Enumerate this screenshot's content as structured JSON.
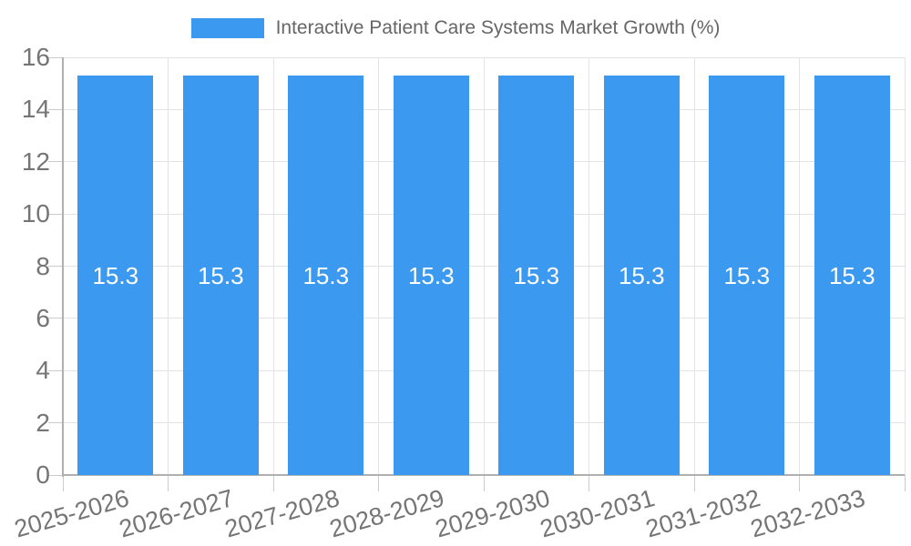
{
  "legend": {
    "label": "Interactive Patient Care Systems Market Growth (%)"
  },
  "colors": {
    "bar": "#3b99f0",
    "grid": "#e3e3e3",
    "axis": "#b0b0b0",
    "tick": "#cccccc",
    "axis_text": "#757575",
    "legend_text": "#666666",
    "value_text": "#ffffff",
    "background": "#ffffff"
  },
  "chart_data": {
    "type": "bar",
    "title": "Interactive Patient Care Systems Market Growth (%)",
    "categories": [
      "2025-2026",
      "2026-2027",
      "2027-2028",
      "2028-2029",
      "2029-2030",
      "2030-2031",
      "2031-2032",
      "2032-2033"
    ],
    "values": [
      15.3,
      15.3,
      15.3,
      15.3,
      15.3,
      15.3,
      15.3,
      15.3
    ],
    "value_labels": [
      "15.3",
      "15.3",
      "15.3",
      "15.3",
      "15.3",
      "15.3",
      "15.3",
      "15.3"
    ],
    "xlabel": "",
    "ylabel": "",
    "ylim": [
      0,
      16
    ],
    "yticks": [
      0,
      2,
      4,
      6,
      8,
      10,
      12,
      14,
      16
    ],
    "ytick_labels": [
      "0",
      "2",
      "4",
      "6",
      "8",
      "10",
      "12",
      "14",
      "16"
    ],
    "grid": true,
    "legend_position": "top",
    "x_label_rotation_deg": -16
  }
}
